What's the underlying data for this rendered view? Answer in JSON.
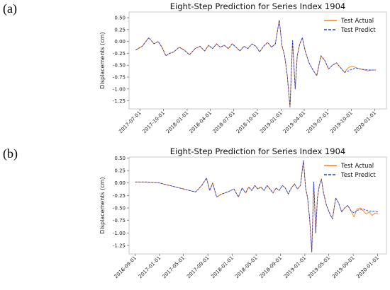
{
  "panels": [
    {
      "letter": "(a)"
    },
    {
      "letter": "(b)"
    }
  ],
  "chart_data": [
    {
      "type": "line",
      "title": "Eight-Step Prediction for Series Index 1904",
      "xlabel": "",
      "ylabel": "Displacements (cm)",
      "ylim": [
        -1.42,
        0.62
      ],
      "xlim": [
        "2017-05-20",
        "2020-02-15"
      ],
      "yticks": [
        "0.50",
        "0.25",
        "0.00",
        "-0.25",
        "-0.50",
        "-0.75",
        "-1.00",
        "-1.25"
      ],
      "ytick_values": [
        0.5,
        0.25,
        0.0,
        -0.25,
        -0.5,
        -0.75,
        -1.0,
        -1.25
      ],
      "xticks": [
        "2017-07-01",
        "2017-10-01",
        "2018-01-01",
        "2018-04-01",
        "2018-07-01",
        "2018-10-01",
        "2019-01-01",
        "2019-04-01",
        "2019-07-01",
        "2019-10-01",
        "2020-01-01"
      ],
      "legend_position": "top-right",
      "series": [
        {
          "name": "Test Actual",
          "color": "#ff7f0e",
          "style": "solid",
          "x": [
            "2017-06-15",
            "2017-07-10",
            "2017-08-05",
            "2017-08-25",
            "2017-09-10",
            "2017-09-25",
            "2017-10-10",
            "2017-10-25",
            "2017-11-10",
            "2017-12-01",
            "2017-12-20",
            "2018-01-10",
            "2018-02-01",
            "2018-02-20",
            "2018-03-10",
            "2018-03-25",
            "2018-04-10",
            "2018-04-25",
            "2018-05-10",
            "2018-05-25",
            "2018-06-10",
            "2018-06-25",
            "2018-07-10",
            "2018-07-25",
            "2018-08-10",
            "2018-08-25",
            "2018-09-10",
            "2018-09-25",
            "2018-10-10",
            "2018-10-25",
            "2018-11-10",
            "2018-11-25",
            "2018-12-10",
            "2018-12-25",
            "2019-01-05",
            "2019-01-15",
            "2019-01-25",
            "2019-02-05",
            "2019-02-15",
            "2019-02-25",
            "2019-03-05",
            "2019-03-15",
            "2019-03-25",
            "2019-04-05",
            "2019-04-20",
            "2019-05-05",
            "2019-05-20",
            "2019-06-05",
            "2019-06-20",
            "2019-07-05",
            "2019-07-20",
            "2019-08-05",
            "2019-08-20",
            "2019-09-05",
            "2019-09-20",
            "2019-10-05",
            "2019-10-20",
            "2019-11-05",
            "2019-11-20",
            "2019-12-05",
            "2019-12-20",
            "2020-01-05"
          ],
          "y": [
            -0.18,
            -0.1,
            0.08,
            -0.05,
            0.0,
            -0.12,
            -0.3,
            -0.25,
            -0.22,
            -0.12,
            -0.18,
            -0.28,
            -0.15,
            -0.1,
            -0.2,
            -0.08,
            -0.15,
            -0.05,
            -0.12,
            -0.08,
            -0.15,
            -0.05,
            -0.12,
            -0.2,
            -0.1,
            -0.15,
            -0.05,
            -0.1,
            -0.22,
            -0.1,
            -0.02,
            -0.12,
            -0.05,
            0.45,
            -0.1,
            -0.3,
            -0.7,
            -1.38,
            0.02,
            -1.0,
            -0.3,
            -0.05,
            0.08,
            -0.2,
            -0.45,
            -0.6,
            -0.72,
            -0.3,
            -0.4,
            -0.58,
            -0.5,
            -0.45,
            -0.55,
            -0.65,
            -0.55,
            -0.52,
            -0.55,
            -0.58,
            -0.6,
            -0.62,
            -0.6,
            -0.6
          ]
        },
        {
          "name": "Test Predict",
          "color": "#1f3fd4",
          "style": "dashed",
          "x": [
            "2017-06-15",
            "2017-07-10",
            "2017-08-05",
            "2017-08-25",
            "2017-09-10",
            "2017-09-25",
            "2017-10-10",
            "2017-10-25",
            "2017-11-10",
            "2017-12-01",
            "2017-12-20",
            "2018-01-10",
            "2018-02-01",
            "2018-02-20",
            "2018-03-10",
            "2018-03-25",
            "2018-04-10",
            "2018-04-25",
            "2018-05-10",
            "2018-05-25",
            "2018-06-10",
            "2018-06-25",
            "2018-07-10",
            "2018-07-25",
            "2018-08-10",
            "2018-08-25",
            "2018-09-10",
            "2018-09-25",
            "2018-10-10",
            "2018-10-25",
            "2018-11-10",
            "2018-11-25",
            "2018-12-10",
            "2018-12-25",
            "2019-01-05",
            "2019-01-15",
            "2019-01-25",
            "2019-02-05",
            "2019-02-15",
            "2019-02-25",
            "2019-03-05",
            "2019-03-15",
            "2019-03-25",
            "2019-04-05",
            "2019-04-20",
            "2019-05-05",
            "2019-05-20",
            "2019-06-05",
            "2019-06-20",
            "2019-07-05",
            "2019-07-20",
            "2019-08-05",
            "2019-08-20",
            "2019-09-05",
            "2019-09-20",
            "2019-10-05",
            "2019-10-20",
            "2019-11-05",
            "2019-11-20",
            "2019-12-05",
            "2019-12-20",
            "2020-01-05"
          ],
          "y": [
            -0.18,
            -0.1,
            0.08,
            -0.05,
            0.0,
            -0.12,
            -0.3,
            -0.25,
            -0.22,
            -0.12,
            -0.18,
            -0.28,
            -0.15,
            -0.1,
            -0.2,
            -0.08,
            -0.15,
            -0.05,
            -0.12,
            -0.08,
            -0.15,
            -0.05,
            -0.12,
            -0.2,
            -0.1,
            -0.15,
            -0.05,
            -0.1,
            -0.22,
            -0.1,
            -0.02,
            -0.12,
            -0.05,
            0.45,
            -0.1,
            -0.3,
            -0.7,
            -1.38,
            0.02,
            -1.0,
            -0.3,
            -0.05,
            0.08,
            -0.2,
            -0.45,
            -0.6,
            -0.72,
            -0.3,
            -0.4,
            -0.58,
            -0.5,
            -0.45,
            -0.55,
            -0.65,
            -0.62,
            -0.58,
            -0.56,
            -0.58,
            -0.59,
            -0.6,
            -0.6,
            -0.6
          ]
        }
      ]
    },
    {
      "type": "line",
      "title": "Eight-Step Prediction for Series Index 1904",
      "xlabel": "",
      "ylabel": "Displacements (cm)",
      "ylim": [
        -1.42,
        0.52
      ],
      "xlim": [
        "2016-08-01",
        "2020-02-15"
      ],
      "yticks": [
        "0.50",
        "0.25",
        "0.00",
        "-0.25",
        "-0.50",
        "-0.75",
        "-1.00",
        "-1.25"
      ],
      "ytick_values": [
        0.5,
        0.25,
        0.0,
        -0.25,
        -0.5,
        -0.75,
        -1.0,
        -1.25
      ],
      "xticks": [
        "2016-09-01",
        "2017-01-01",
        "2017-05-01",
        "2017-09-01",
        "2018-01-01",
        "2018-05-01",
        "2018-09-01",
        "2019-01-01",
        "2019-05-01",
        "2019-09-01",
        "2020-01-01"
      ],
      "legend_position": "top-right",
      "series": [
        {
          "name": "Test Actual",
          "color": "#ff7f0e",
          "style": "solid",
          "x": [
            "2016-09-01",
            "2016-11-01",
            "2017-01-01",
            "2017-07-01",
            "2017-08-01",
            "2017-08-25",
            "2017-09-10",
            "2017-09-25",
            "2017-10-15",
            "2017-11-10",
            "2017-12-10",
            "2018-01-10",
            "2018-02-01",
            "2018-02-20",
            "2018-03-10",
            "2018-03-25",
            "2018-04-10",
            "2018-04-25",
            "2018-05-10",
            "2018-05-25",
            "2018-06-10",
            "2018-06-25",
            "2018-07-10",
            "2018-07-25",
            "2018-08-10",
            "2018-08-25",
            "2018-09-10",
            "2018-09-25",
            "2018-10-10",
            "2018-10-25",
            "2018-11-10",
            "2018-11-25",
            "2018-12-10",
            "2018-12-25",
            "2019-01-05",
            "2019-01-15",
            "2019-01-25",
            "2019-02-05",
            "2019-02-15",
            "2019-02-25",
            "2019-03-05",
            "2019-03-15",
            "2019-03-25",
            "2019-04-05",
            "2019-04-20",
            "2019-05-05",
            "2019-05-20",
            "2019-06-05",
            "2019-06-20",
            "2019-07-05",
            "2019-07-20",
            "2019-08-05",
            "2019-08-20",
            "2019-09-05",
            "2019-09-20",
            "2019-10-05",
            "2019-10-20",
            "2019-11-05",
            "2019-11-20",
            "2019-12-05",
            "2019-12-20",
            "2020-01-05"
          ],
          "y": [
            0.02,
            0.02,
            0.0,
            -0.18,
            -0.05,
            0.1,
            -0.15,
            0.0,
            -0.28,
            -0.22,
            -0.18,
            -0.12,
            -0.28,
            -0.1,
            -0.2,
            -0.08,
            -0.15,
            -0.05,
            -0.12,
            -0.08,
            -0.15,
            -0.05,
            -0.12,
            -0.2,
            -0.1,
            -0.15,
            -0.05,
            -0.1,
            -0.22,
            -0.1,
            -0.02,
            -0.12,
            -0.05,
            0.45,
            -0.1,
            -0.3,
            -0.7,
            -1.38,
            0.02,
            -1.0,
            -0.3,
            -0.05,
            0.08,
            -0.2,
            -0.45,
            -0.6,
            -0.72,
            -0.3,
            -0.4,
            -0.58,
            -0.5,
            -0.45,
            -0.55,
            -0.68,
            -0.52,
            -0.5,
            -0.55,
            -0.62,
            -0.58,
            -0.65,
            -0.6,
            -0.62
          ]
        },
        {
          "name": "Test Predict",
          "color": "#1f3fd4",
          "style": "dashed",
          "x": [
            "2016-09-01",
            "2016-11-01",
            "2017-01-01",
            "2017-07-01",
            "2017-08-01",
            "2017-08-25",
            "2017-09-10",
            "2017-09-25",
            "2017-10-15",
            "2017-11-10",
            "2017-12-10",
            "2018-01-10",
            "2018-02-01",
            "2018-02-20",
            "2018-03-10",
            "2018-03-25",
            "2018-04-10",
            "2018-04-25",
            "2018-05-10",
            "2018-05-25",
            "2018-06-10",
            "2018-06-25",
            "2018-07-10",
            "2018-07-25",
            "2018-08-10",
            "2018-08-25",
            "2018-09-10",
            "2018-09-25",
            "2018-10-10",
            "2018-10-25",
            "2018-11-10",
            "2018-11-25",
            "2018-12-10",
            "2018-12-25",
            "2019-01-05",
            "2019-01-15",
            "2019-01-25",
            "2019-02-05",
            "2019-02-15",
            "2019-02-25",
            "2019-03-05",
            "2019-03-15",
            "2019-03-25",
            "2019-04-05",
            "2019-04-20",
            "2019-05-05",
            "2019-05-20",
            "2019-06-05",
            "2019-06-20",
            "2019-07-05",
            "2019-07-20",
            "2019-08-05",
            "2019-08-20",
            "2019-09-05",
            "2019-09-20",
            "2019-10-05",
            "2019-10-20",
            "2019-11-05",
            "2019-11-20",
            "2019-12-05",
            "2019-12-20",
            "2020-01-05"
          ],
          "y": [
            0.02,
            0.02,
            0.0,
            -0.18,
            -0.05,
            0.1,
            -0.15,
            0.0,
            -0.28,
            -0.22,
            -0.18,
            -0.12,
            -0.28,
            -0.1,
            -0.2,
            -0.08,
            -0.15,
            -0.05,
            -0.12,
            -0.08,
            -0.15,
            -0.05,
            -0.12,
            -0.2,
            -0.1,
            -0.15,
            -0.05,
            -0.1,
            -0.22,
            -0.1,
            -0.02,
            -0.12,
            -0.05,
            0.45,
            -0.1,
            -0.3,
            -0.7,
            -1.38,
            0.02,
            -1.0,
            -0.3,
            -0.05,
            0.08,
            -0.2,
            -0.45,
            -0.6,
            -0.72,
            -0.3,
            -0.4,
            -0.58,
            -0.5,
            -0.45,
            -0.55,
            -0.6,
            -0.55,
            -0.53,
            -0.52,
            -0.55,
            -0.56,
            -0.56,
            -0.57,
            -0.58
          ]
        }
      ]
    }
  ]
}
